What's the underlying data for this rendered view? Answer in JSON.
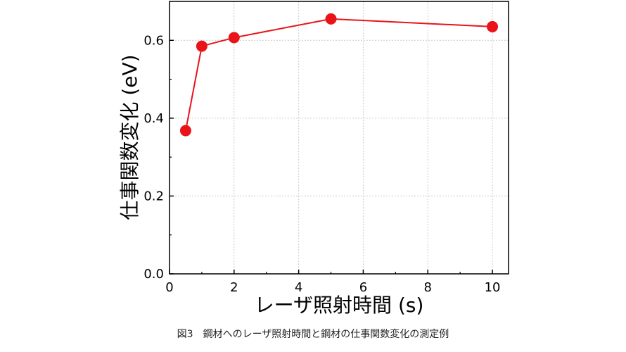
{
  "caption": "図3　鋼材へのレーザ照射時間と鋼材の仕事関数変化の測定例",
  "colors": {
    "series": "#e8141a",
    "axis": "#000000",
    "grid": "#cccccc"
  },
  "chart_data": {
    "type": "line",
    "xlabel": "レーザ照射時間 (s)",
    "ylabel": "仕事関数変化 (eV)",
    "xlim": [
      0,
      10.5
    ],
    "ylim": [
      0,
      0.7
    ],
    "xticks": [
      0,
      2,
      4,
      6,
      8,
      10
    ],
    "xtick_labels": [
      "0",
      "2",
      "4",
      "6",
      "8",
      "10"
    ],
    "yticks": [
      0.0,
      0.2,
      0.4,
      0.6
    ],
    "ytick_labels": [
      "0.0",
      "0.2",
      "0.4",
      "0.6"
    ],
    "grid": true,
    "series": [
      {
        "x": [
          0.5,
          1,
          2,
          5,
          10
        ],
        "y": [
          0.368,
          0.585,
          0.607,
          0.655,
          0.635
        ],
        "marker": "circle"
      }
    ]
  }
}
